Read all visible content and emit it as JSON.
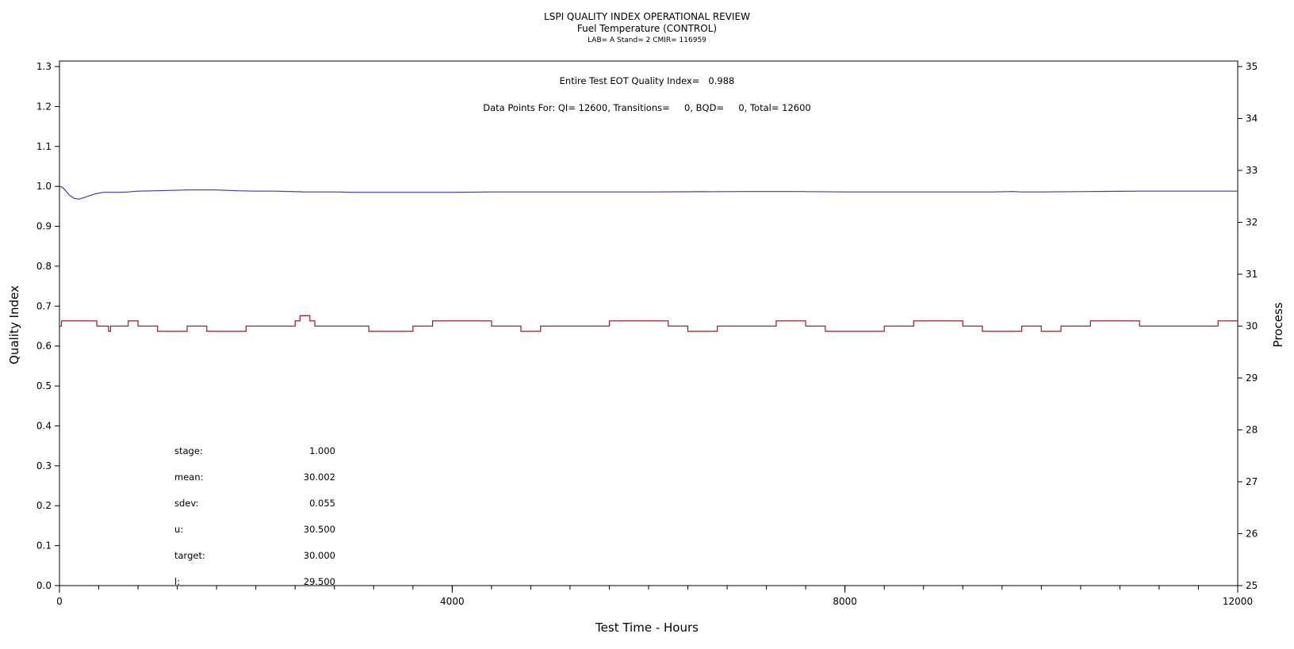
{
  "chart_data": {
    "type": "line",
    "title": "LSPI QUALITY INDEX OPERATIONAL REVIEW",
    "subtitle": "Fuel Temperature (CONTROL)",
    "subtitle2": "LAB= A Stand= 2 CMIR= 116959",
    "xlabel": "Test Time - Hours",
    "ylabel": "Quality Index",
    "y2label": "Process",
    "xlim": [
      0,
      12000
    ],
    "ylim": [
      0.0,
      1.3
    ],
    "y2lim": [
      25,
      35
    ],
    "xticks": [
      "0",
      "4000",
      "8000",
      "12000"
    ],
    "xtick_values": [
      0,
      4000,
      8000,
      12000
    ],
    "xminor_step": 400,
    "yticks": [
      "0.0",
      "0.1",
      "0.2",
      "0.3",
      "0.4",
      "0.5",
      "0.6",
      "0.7",
      "0.8",
      "0.9",
      "1.0",
      "1.1",
      "1.2",
      "1.3"
    ],
    "ytick_values": [
      0.0,
      0.1,
      0.2,
      0.3,
      0.4,
      0.5,
      0.6,
      0.7,
      0.8,
      0.9,
      1.0,
      1.1,
      1.2,
      1.3
    ],
    "y2ticks": [
      "25",
      "26",
      "27",
      "28",
      "29",
      "30",
      "31",
      "32",
      "33",
      "34",
      "35"
    ],
    "y2tick_values": [
      25,
      26,
      27,
      28,
      29,
      30,
      31,
      32,
      33,
      34,
      35
    ],
    "annotations": {
      "qi_line": "Entire Test EOT Quality Index=   0.988",
      "points_line": "Data Points For: QI= 12600, Transitions=     0, BQD=     0, Total= 12600"
    },
    "stats": [
      {
        "label": "stage:",
        "value": "1.000"
      },
      {
        "label": "mean:",
        "value": "30.002"
      },
      {
        "label": "sdev:",
        "value": "0.055"
      },
      {
        "label": "u:",
        "value": "30.500"
      },
      {
        "label": "target:",
        "value": "30.000"
      },
      {
        "label": "l:",
        "value": "29.500"
      }
    ],
    "series": [
      {
        "name": "Quality Index",
        "axis": "left",
        "color": "#3a3aa8",
        "x": [
          0,
          30,
          60,
          100,
          150,
          200,
          250,
          300,
          350,
          400,
          450,
          500,
          600,
          700,
          800,
          1000,
          1300,
          1600,
          1800,
          2000,
          2200,
          2500,
          2800,
          3000,
          3500,
          4000,
          4400,
          4500,
          5000,
          6000,
          7000,
          7500,
          8000,
          8500,
          9000,
          9500,
          9700,
          9800,
          10000,
          10500,
          11000,
          12000
        ],
        "y": [
          1.0,
          0.998,
          0.99,
          0.978,
          0.97,
          0.968,
          0.972,
          0.976,
          0.98,
          0.983,
          0.985,
          0.985,
          0.985,
          0.986,
          0.988,
          0.989,
          0.991,
          0.991,
          0.989,
          0.988,
          0.988,
          0.986,
          0.986,
          0.985,
          0.985,
          0.985,
          0.986,
          0.986,
          0.986,
          0.986,
          0.987,
          0.987,
          0.986,
          0.986,
          0.986,
          0.986,
          0.987,
          0.986,
          0.986,
          0.987,
          0.988,
          0.988
        ]
      },
      {
        "name": "Fuel Temperature",
        "axis": "right",
        "color": "#a01825",
        "x": [
          0,
          20,
          200,
          380,
          500,
          520,
          700,
          800,
          1000,
          1300,
          1500,
          1700,
          1900,
          2150,
          2400,
          2450,
          2550,
          2600,
          3150,
          3200,
          3500,
          3600,
          3800,
          3900,
          4300,
          4400,
          4700,
          4900,
          5300,
          5500,
          5600,
          6100,
          6200,
          6300,
          6400,
          6700,
          6800,
          7200,
          7300,
          7500,
          7600,
          7800,
          8000,
          8200,
          8400,
          8600,
          8700,
          9000,
          9200,
          9400,
          9600,
          9800,
          10000,
          10200,
          10400,
          10500,
          11000,
          11500,
          11800,
          12000
        ],
        "y": [
          30.0,
          30.1,
          30.1,
          30.0,
          29.9,
          30.0,
          30.1,
          30.0,
          29.9,
          30.0,
          29.9,
          29.9,
          30.0,
          30.0,
          30.1,
          30.2,
          30.1,
          30.0,
          29.9,
          29.9,
          29.9,
          30.0,
          30.1,
          30.1,
          30.1,
          30.0,
          29.9,
          30.0,
          30.0,
          30.0,
          30.1,
          30.1,
          30.0,
          30.0,
          29.9,
          30.0,
          30.0,
          30.0,
          30.1,
          30.1,
          30.0,
          29.9,
          29.9,
          29.9,
          30.0,
          30.0,
          30.1,
          30.1,
          30.0,
          29.9,
          29.9,
          30.0,
          29.9,
          30.0,
          30.0,
          30.1,
          30.0,
          30.0,
          30.1,
          30.1
        ]
      }
    ]
  }
}
